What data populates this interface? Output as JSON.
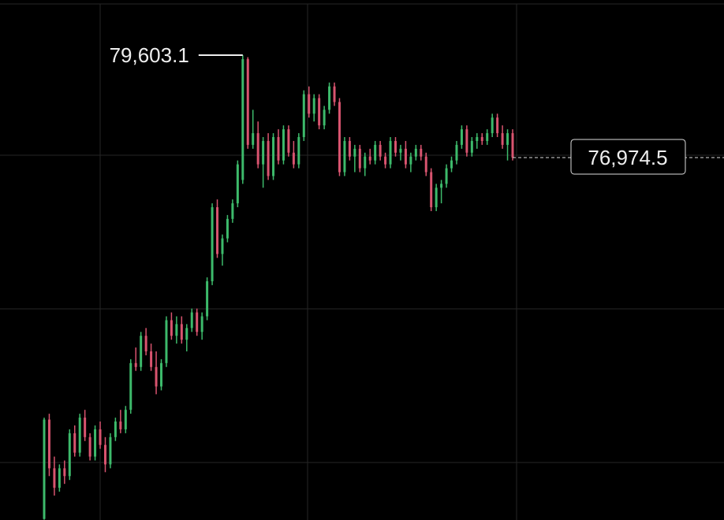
{
  "chart_data": {
    "type": "candlestick",
    "up_color": "#3dba6b",
    "down_color": "#d9546f",
    "ylim": [
      67673,
      81018
    ],
    "high": {
      "value": 79603.1,
      "label": "79,603.1"
    },
    "last_price": {
      "value": 76974.5,
      "label": "76,974.5"
    },
    "candles": [
      [
        67700,
        70300,
        67680,
        70250
      ],
      [
        70250,
        70400,
        68800,
        69000
      ],
      [
        69000,
        69300,
        68300,
        68500
      ],
      [
        68500,
        69100,
        68400,
        69000
      ],
      [
        69000,
        69200,
        68600,
        68800
      ],
      [
        68800,
        70000,
        68700,
        69900
      ],
      [
        69900,
        70100,
        69300,
        69400
      ],
      [
        69400,
        70400,
        69300,
        70300
      ],
      [
        70300,
        70500,
        69700,
        69800
      ],
      [
        69800,
        69900,
        69200,
        69300
      ],
      [
        69300,
        70100,
        69200,
        70000
      ],
      [
        70000,
        70200,
        69500,
        69600
      ],
      [
        69600,
        69800,
        68900,
        69100
      ],
      [
        69100,
        69900,
        69000,
        69800
      ],
      [
        69800,
        70300,
        69700,
        70200
      ],
      [
        70200,
        70500,
        69900,
        70000
      ],
      [
        70000,
        70600,
        69900,
        70500
      ],
      [
        70500,
        71800,
        70400,
        71700
      ],
      [
        71700,
        72100,
        71500,
        71600
      ],
      [
        71600,
        72500,
        71500,
        72400
      ],
      [
        72400,
        72600,
        71900,
        72000
      ],
      [
        72000,
        72200,
        71500,
        71600
      ],
      [
        71600,
        72000,
        70900,
        71100
      ],
      [
        71100,
        71800,
        71000,
        71700
      ],
      [
        71700,
        72900,
        71600,
        72800
      ],
      [
        72800,
        73000,
        72300,
        72400
      ],
      [
        72400,
        72900,
        72200,
        72700
      ],
      [
        72700,
        72900,
        72200,
        72300
      ],
      [
        72300,
        72700,
        72000,
        72600
      ],
      [
        72600,
        73100,
        72500,
        73000
      ],
      [
        73000,
        73100,
        72400,
        72500
      ],
      [
        72500,
        73000,
        72300,
        72900
      ],
      [
        72900,
        73900,
        72800,
        73800
      ],
      [
        73800,
        75800,
        73700,
        75700
      ],
      [
        75700,
        75900,
        74400,
        74500
      ],
      [
        74500,
        75000,
        74200,
        74900
      ],
      [
        74900,
        75500,
        74800,
        75400
      ],
      [
        75400,
        75900,
        75300,
        75800
      ],
      [
        75800,
        76900,
        75700,
        76800
      ],
      [
        76400,
        79603.1,
        76300,
        79500
      ],
      [
        79500,
        79550,
        77200,
        77300
      ],
      [
        77300,
        78200,
        77200,
        77600
      ],
      [
        77600,
        77900,
        76700,
        76800
      ],
      [
        76800,
        77500,
        76200,
        77400
      ],
      [
        77400,
        77600,
        76400,
        76500
      ],
      [
        76500,
        77600,
        76400,
        77500
      ],
      [
        77500,
        77700,
        76800,
        76900
      ],
      [
        76900,
        77800,
        76800,
        77700
      ],
      [
        77700,
        77800,
        77000,
        77100
      ],
      [
        77100,
        77400,
        76700,
        76800
      ],
      [
        76800,
        77600,
        76700,
        77500
      ],
      [
        77500,
        78700,
        77400,
        78600
      ],
      [
        78600,
        78800,
        78000,
        78100
      ],
      [
        78100,
        78600,
        77900,
        78500
      ],
      [
        78500,
        78600,
        77700,
        77800
      ],
      [
        77800,
        78300,
        77700,
        78200
      ],
      [
        78200,
        78900,
        78100,
        78800
      ],
      [
        78800,
        78900,
        78300,
        78400
      ],
      [
        78400,
        78500,
        76500,
        76600
      ],
      [
        76600,
        77500,
        76500,
        77400
      ],
      [
        77400,
        77500,
        76900,
        77000
      ],
      [
        77000,
        77300,
        76600,
        77200
      ],
      [
        77200,
        77300,
        76600,
        76700
      ],
      [
        76700,
        77100,
        76500,
        77000
      ],
      [
        77000,
        77200,
        76800,
        76900
      ],
      [
        76900,
        77400,
        76800,
        77300
      ],
      [
        77300,
        77400,
        76900,
        77000
      ],
      [
        77000,
        77100,
        76700,
        76800
      ],
      [
        76800,
        77500,
        76700,
        77400
      ],
      [
        77400,
        77500,
        77000,
        77100
      ],
      [
        77100,
        77300,
        76900,
        77200
      ],
      [
        77200,
        77400,
        76700,
        76800
      ],
      [
        76800,
        77100,
        76600,
        77000
      ],
      [
        77000,
        77300,
        76900,
        77200
      ],
      [
        77200,
        77300,
        76900,
        77000
      ],
      [
        77000,
        77100,
        76500,
        76600
      ],
      [
        76600,
        76700,
        75600,
        75700
      ],
      [
        75700,
        76300,
        75600,
        76200
      ],
      [
        76200,
        76400,
        75800,
        76300
      ],
      [
        76300,
        76800,
        76200,
        76700
      ],
      [
        76700,
        77000,
        76600,
        76900
      ],
      [
        76900,
        77400,
        76800,
        77300
      ],
      [
        77300,
        77800,
        77200,
        77700
      ],
      [
        77700,
        77800,
        77000,
        77100
      ],
      [
        77100,
        77500,
        77000,
        77400
      ],
      [
        77400,
        77600,
        77200,
        77500
      ],
      [
        77500,
        77600,
        77300,
        77400
      ],
      [
        77400,
        77700,
        77300,
        77600
      ],
      [
        77600,
        78100,
        77500,
        78000
      ],
      [
        78000,
        78100,
        77500,
        77600
      ],
      [
        77600,
        77800,
        77200,
        77300
      ],
      [
        77300,
        77700,
        76900,
        77600
      ],
      [
        77600,
        77700,
        76900,
        76974.5
      ]
    ]
  }
}
